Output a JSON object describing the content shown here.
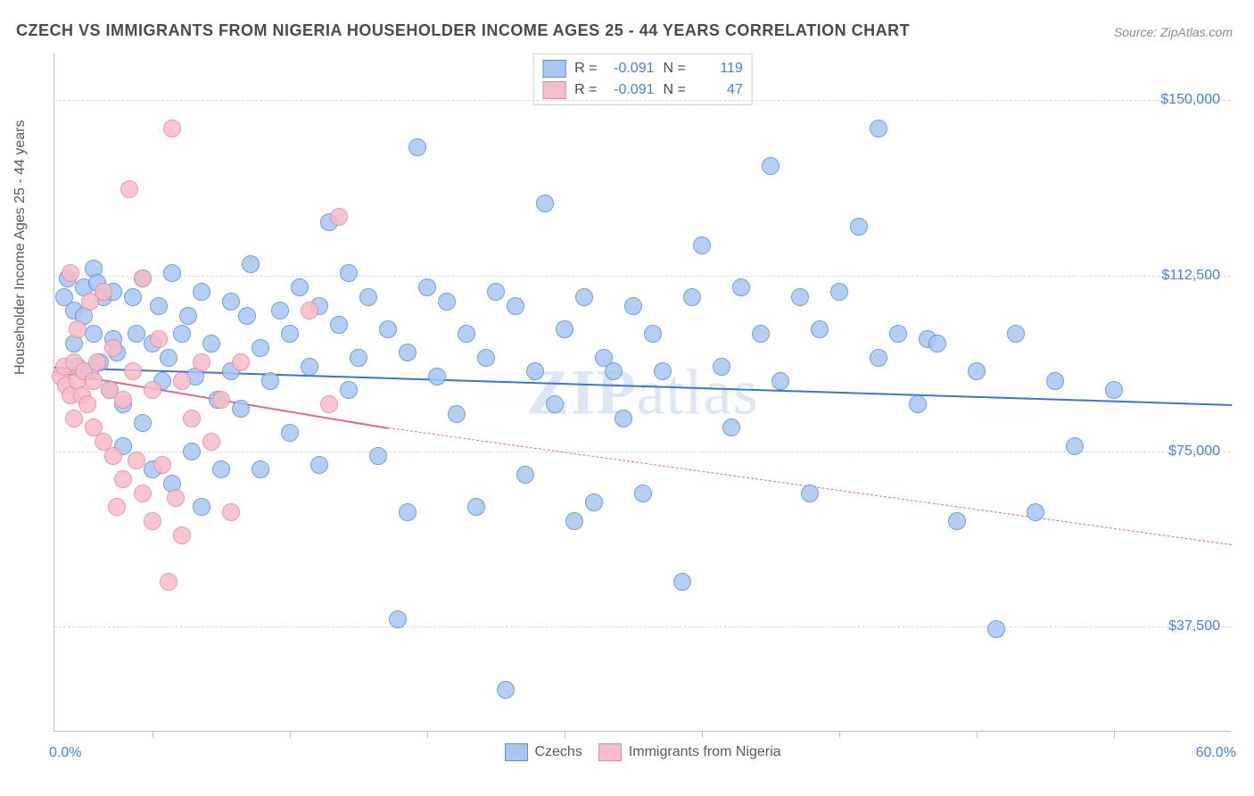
{
  "title": "CZECH VS IMMIGRANTS FROM NIGERIA HOUSEHOLDER INCOME AGES 25 - 44 YEARS CORRELATION CHART",
  "source": "Source: ZipAtlas.com",
  "watermark_a": "ZIP",
  "watermark_b": "atlas",
  "chart": {
    "type": "scatter",
    "ylabel": "Householder Income Ages 25 - 44 years",
    "xlim": [
      0,
      60
    ],
    "ylim": [
      15000,
      160000
    ],
    "x_axis_start_label": "0.0%",
    "x_axis_end_label": "60.0%",
    "y_ticks": [
      37500,
      75000,
      112500,
      150000
    ],
    "y_tick_labels": [
      "$37,500",
      "$75,000",
      "$112,500",
      "$150,000"
    ],
    "x_tick_positions": [
      5,
      12,
      19,
      26,
      33,
      40,
      47,
      54
    ],
    "grid_color": "#d8d8d8",
    "background_color": "#ffffff",
    "axis_color": "#c0c0c0",
    "tick_label_color": "#4a7fd8",
    "marker_radius": 10,
    "marker_border_width": 1.5,
    "marker_fill_opacity": 0.35,
    "series": [
      {
        "name": "Czechs",
        "legend_label": "Czechs",
        "R_label": "R =",
        "R": "-0.091",
        "N_label": "N =",
        "N": "119",
        "color_fill": "#a9c6ef",
        "color_stroke": "#5a8fd8",
        "trend": {
          "x1": 0,
          "y1": 93000,
          "x2": 60,
          "y2": 85000,
          "color": "#3f76cc",
          "width": 2.5,
          "dash": "solid",
          "extrapolate_dash": false
        },
        "points": [
          [
            0.5,
            108000
          ],
          [
            0.7,
            112000
          ],
          [
            1,
            105000
          ],
          [
            1,
            98000
          ],
          [
            1.2,
            93000
          ],
          [
            1.5,
            110000
          ],
          [
            1.5,
            104000
          ],
          [
            1.8,
            92000
          ],
          [
            2,
            114000
          ],
          [
            2,
            100000
          ],
          [
            2.2,
            111000
          ],
          [
            2.3,
            94000
          ],
          [
            2.5,
            108000
          ],
          [
            2.8,
            88000
          ],
          [
            3,
            109000
          ],
          [
            3,
            99000
          ],
          [
            3.2,
            96000
          ],
          [
            3.5,
            85000
          ],
          [
            3.5,
            76000
          ],
          [
            4,
            108000
          ],
          [
            4.2,
            100000
          ],
          [
            4.5,
            112000
          ],
          [
            4.5,
            81000
          ],
          [
            5,
            98000
          ],
          [
            5,
            71000
          ],
          [
            5.3,
            106000
          ],
          [
            5.5,
            90000
          ],
          [
            5.8,
            95000
          ],
          [
            6,
            113000
          ],
          [
            6,
            68000
          ],
          [
            6.5,
            100000
          ],
          [
            6.8,
            104000
          ],
          [
            7,
            75000
          ],
          [
            7.2,
            91000
          ],
          [
            7.5,
            109000
          ],
          [
            7.5,
            63000
          ],
          [
            8,
            98000
          ],
          [
            8.3,
            86000
          ],
          [
            8.5,
            71000
          ],
          [
            9,
            107000
          ],
          [
            9,
            92000
          ],
          [
            9.5,
            84000
          ],
          [
            9.8,
            104000
          ],
          [
            10,
            115000
          ],
          [
            10.5,
            97000
          ],
          [
            10.5,
            71000
          ],
          [
            11,
            90000
          ],
          [
            11.5,
            105000
          ],
          [
            12,
            100000
          ],
          [
            12,
            79000
          ],
          [
            12.5,
            110000
          ],
          [
            13,
            93000
          ],
          [
            13.5,
            106000
          ],
          [
            13.5,
            72000
          ],
          [
            14,
            124000
          ],
          [
            14.5,
            102000
          ],
          [
            15,
            113000
          ],
          [
            15,
            88000
          ],
          [
            15.5,
            95000
          ],
          [
            16,
            108000
          ],
          [
            16.5,
            74000
          ],
          [
            17,
            101000
          ],
          [
            17.5,
            39000
          ],
          [
            18,
            96000
          ],
          [
            18,
            62000
          ],
          [
            18.5,
            140000
          ],
          [
            19,
            110000
          ],
          [
            19.5,
            91000
          ],
          [
            20,
            107000
          ],
          [
            20.5,
            83000
          ],
          [
            21,
            100000
          ],
          [
            21.5,
            63000
          ],
          [
            22,
            95000
          ],
          [
            22.5,
            109000
          ],
          [
            23,
            24000
          ],
          [
            23.5,
            106000
          ],
          [
            24,
            70000
          ],
          [
            24.5,
            92000
          ],
          [
            25,
            128000
          ],
          [
            25.5,
            85000
          ],
          [
            26,
            101000
          ],
          [
            26.5,
            60000
          ],
          [
            27,
            108000
          ],
          [
            27.5,
            64000
          ],
          [
            28,
            95000
          ],
          [
            28.5,
            92000
          ],
          [
            29,
            82000
          ],
          [
            29.5,
            106000
          ],
          [
            30,
            66000
          ],
          [
            30.5,
            100000
          ],
          [
            31,
            92000
          ],
          [
            32,
            47000
          ],
          [
            32.5,
            108000
          ],
          [
            33,
            119000
          ],
          [
            34,
            93000
          ],
          [
            34.5,
            80000
          ],
          [
            35,
            110000
          ],
          [
            36,
            100000
          ],
          [
            36.5,
            136000
          ],
          [
            37,
            90000
          ],
          [
            38,
            108000
          ],
          [
            38.5,
            66000
          ],
          [
            39,
            101000
          ],
          [
            40,
            109000
          ],
          [
            41,
            123000
          ],
          [
            42,
            95000
          ],
          [
            42,
            144000
          ],
          [
            43,
            100000
          ],
          [
            44,
            85000
          ],
          [
            44.5,
            99000
          ],
          [
            45,
            98000
          ],
          [
            46,
            60000
          ],
          [
            47,
            92000
          ],
          [
            48,
            37000
          ],
          [
            49,
            100000
          ],
          [
            50,
            62000
          ],
          [
            51,
            90000
          ],
          [
            52,
            76000
          ],
          [
            54,
            88000
          ]
        ]
      },
      {
        "name": "Immigrants from Nigeria",
        "legend_label": "Immigrants from Nigeria",
        "R_label": "R =",
        "R": "-0.091",
        "N_label": "N =",
        "N": "47",
        "color_fill": "#f6bdca",
        "color_stroke": "#e688a0",
        "trend": {
          "x1": 0,
          "y1": 92000,
          "x2": 17,
          "y2": 80000,
          "color": "#e06a8a",
          "width": 2.5,
          "dash": "solid",
          "extrapolate_to": 60,
          "extrapolate_y": 55000,
          "extrapolate_dash": true
        },
        "points": [
          [
            0.3,
            91000
          ],
          [
            0.5,
            93000
          ],
          [
            0.6,
            89000
          ],
          [
            0.8,
            113000
          ],
          [
            0.8,
            87000
          ],
          [
            1,
            94000
          ],
          [
            1,
            82000
          ],
          [
            1.2,
            90000
          ],
          [
            1.2,
            101000
          ],
          [
            1.4,
            87000
          ],
          [
            1.5,
            92000
          ],
          [
            1.7,
            85000
          ],
          [
            1.8,
            107000
          ],
          [
            2,
            90000
          ],
          [
            2,
            80000
          ],
          [
            2.2,
            94000
          ],
          [
            2.5,
            77000
          ],
          [
            2.5,
            109000
          ],
          [
            2.8,
            88000
          ],
          [
            3,
            74000
          ],
          [
            3,
            97000
          ],
          [
            3.2,
            63000
          ],
          [
            3.5,
            86000
          ],
          [
            3.5,
            69000
          ],
          [
            3.8,
            131000
          ],
          [
            4,
            92000
          ],
          [
            4.2,
            73000
          ],
          [
            4.5,
            66000
          ],
          [
            4.5,
            112000
          ],
          [
            5,
            88000
          ],
          [
            5,
            60000
          ],
          [
            5.3,
            99000
          ],
          [
            5.5,
            72000
          ],
          [
            5.8,
            47000
          ],
          [
            6,
            144000
          ],
          [
            6.2,
            65000
          ],
          [
            6.5,
            90000
          ],
          [
            6.5,
            57000
          ],
          [
            7,
            82000
          ],
          [
            7.5,
            94000
          ],
          [
            8,
            77000
          ],
          [
            8.5,
            86000
          ],
          [
            9,
            62000
          ],
          [
            9.5,
            94000
          ],
          [
            13,
            105000
          ],
          [
            14,
            85000
          ],
          [
            14.5,
            125000
          ]
        ]
      }
    ]
  }
}
